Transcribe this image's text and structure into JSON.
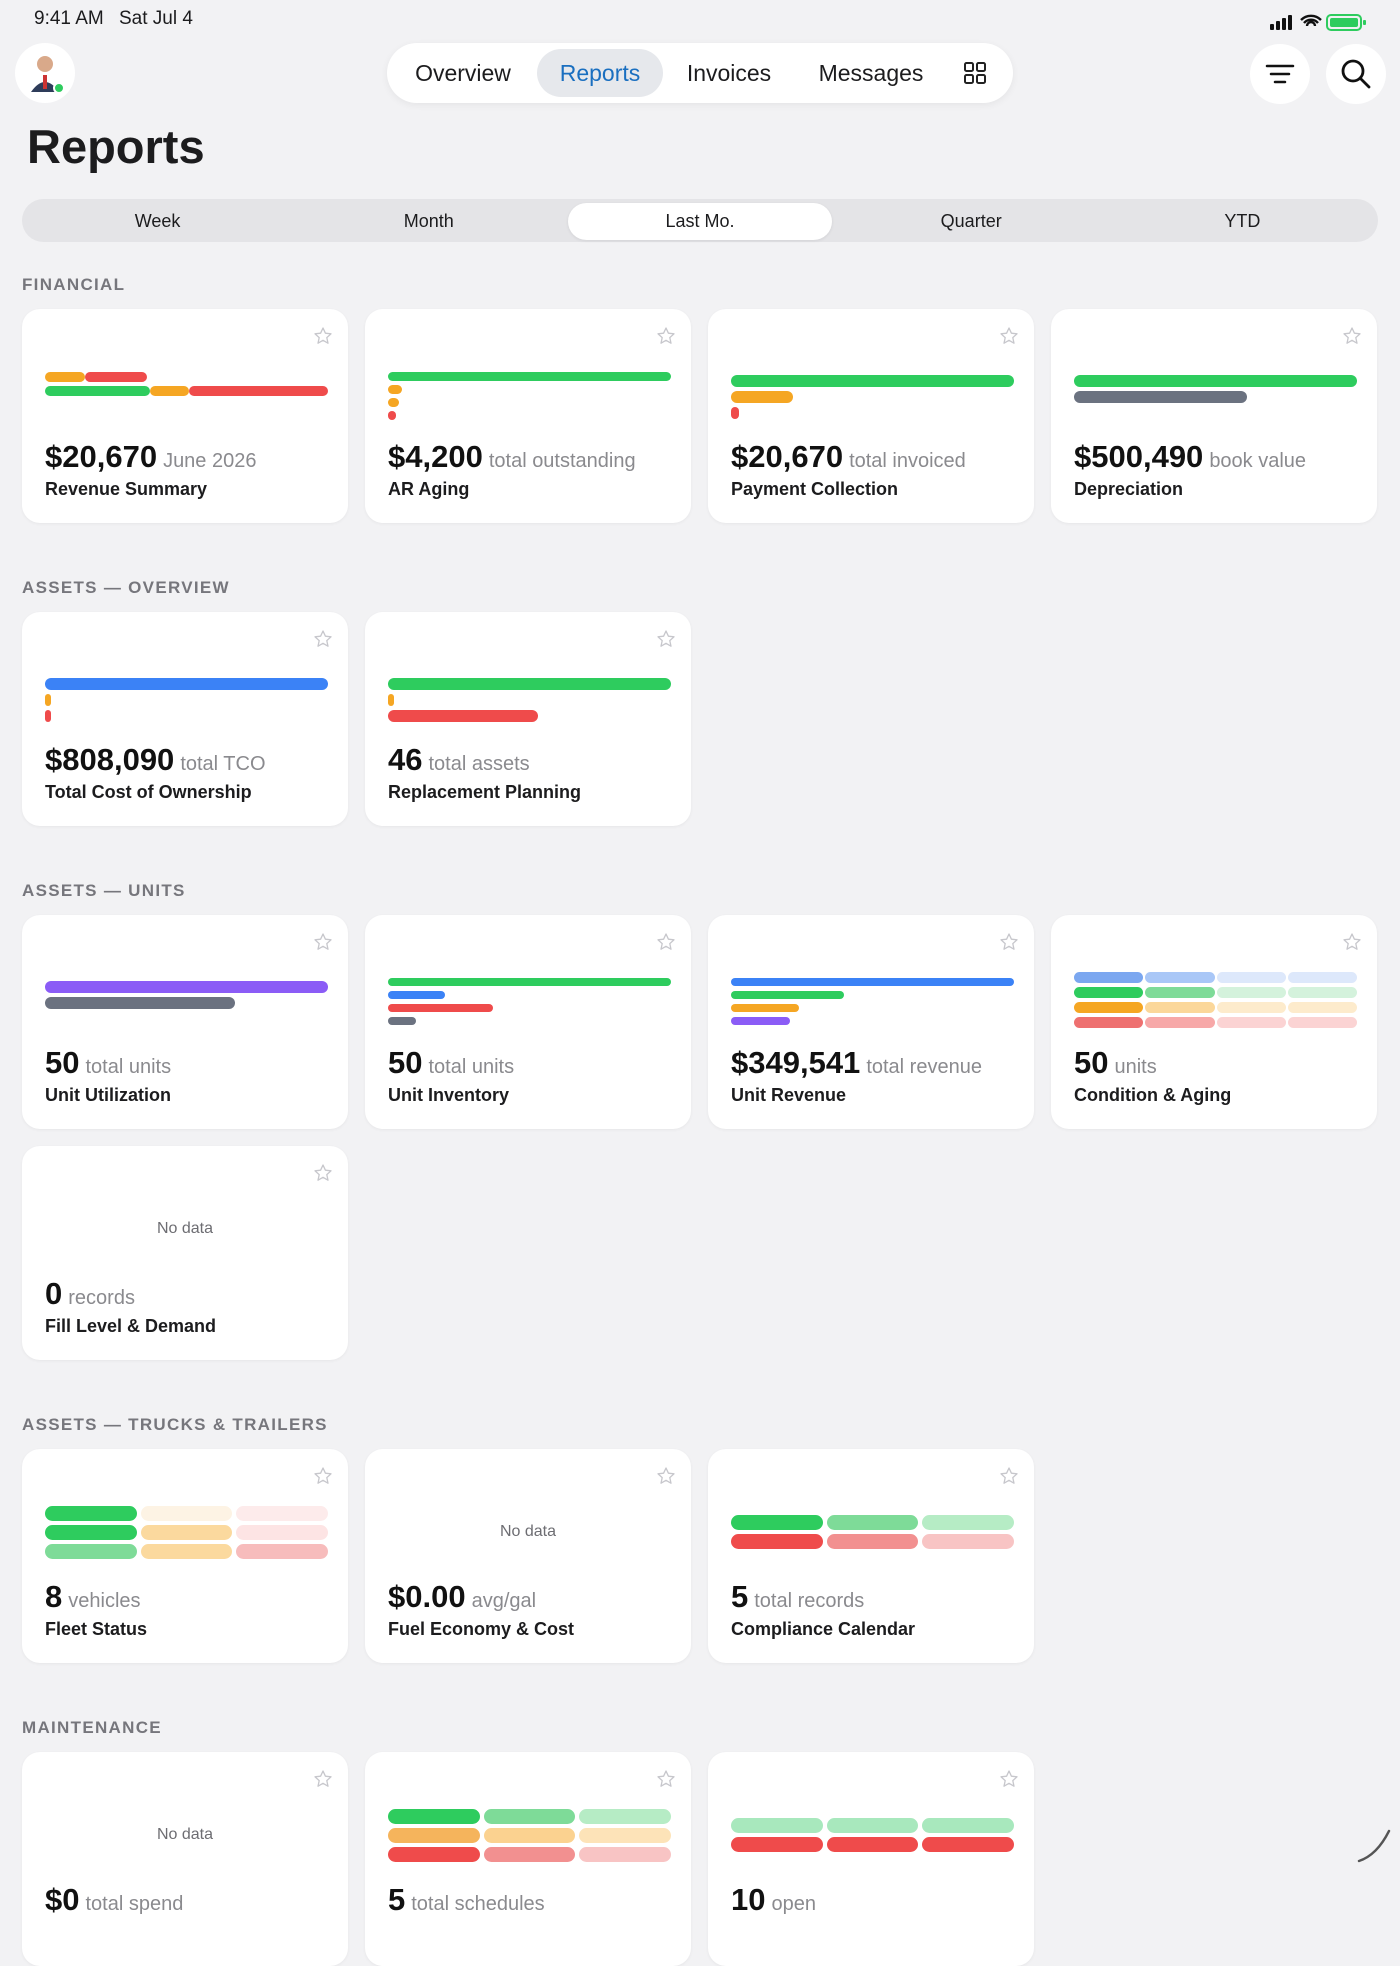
{
  "status_bar": {
    "time": "9:41 AM",
    "date": "Sat Jul 4"
  },
  "nav": {
    "tabs": [
      "Overview",
      "Reports",
      "Invoices",
      "Messages"
    ],
    "selected": 1
  },
  "page": {
    "title": "Reports"
  },
  "segments": {
    "options": [
      "Week",
      "Month",
      "Last Mo.",
      "Quarter",
      "YTD"
    ],
    "selected": 2
  },
  "sections": [
    {
      "title": "FINANCIAL",
      "cards": [
        {
          "value": "$20,670",
          "unit": "June 2026",
          "name": "Revenue Summary"
        },
        {
          "value": "$4,200",
          "unit": "total outstanding",
          "name": "AR Aging"
        },
        {
          "value": "$20,670",
          "unit": "total invoiced",
          "name": "Payment Collection"
        },
        {
          "value": "$500,490",
          "unit": "book value",
          "name": "Depreciation"
        }
      ]
    },
    {
      "title": "ASSETS — OVERVIEW",
      "cards": [
        {
          "value": "$808,090",
          "unit": "total TCO",
          "name": "Total Cost of Ownership"
        },
        {
          "value": "46",
          "unit": "total assets",
          "name": "Replacement Planning"
        }
      ]
    },
    {
      "title": "ASSETS — UNITS",
      "cards": [
        {
          "value": "50",
          "unit": "total units",
          "name": "Unit Utilization"
        },
        {
          "value": "50",
          "unit": "total units",
          "name": "Unit Inventory"
        },
        {
          "value": "$349,541",
          "unit": "total revenue",
          "name": "Unit Revenue"
        },
        {
          "value": "50",
          "unit": "units",
          "name": "Condition & Aging"
        },
        {
          "value": "0",
          "unit": "records",
          "name": "Fill Level & Demand",
          "no_data": "No data"
        }
      ]
    },
    {
      "title": "ASSETS — TRUCKS & TRAILERS",
      "cards": [
        {
          "value": "8",
          "unit": "vehicles",
          "name": "Fleet Status"
        },
        {
          "value": "$0.00",
          "unit": "avg/gal",
          "name": "Fuel Economy & Cost",
          "no_data": "No data"
        },
        {
          "value": "5",
          "unit": "total records",
          "name": "Compliance Calendar"
        }
      ]
    },
    {
      "title": "MAINTENANCE",
      "cards": [
        {
          "value": "$0",
          "unit": "total spend",
          "no_data": "No data"
        },
        {
          "value": "5",
          "unit": "total schedules"
        },
        {
          "value": "10",
          "unit": "open"
        }
      ]
    }
  ]
}
